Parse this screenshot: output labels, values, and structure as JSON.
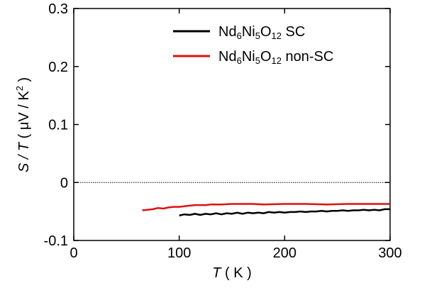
{
  "chart_data": {
    "type": "line",
    "xlabel": {
      "var": "T",
      "rest": " ( K )"
    },
    "ylabel": {
      "var": "S / T",
      "rest": " ( μV / K",
      "sup": "2",
      "end": " )"
    },
    "xlim": [
      0,
      300
    ],
    "ylim": [
      -0.1,
      0.3
    ],
    "x_ticks": [
      "0",
      "100",
      "200",
      "300"
    ],
    "y_ticks": [
      "-0.1",
      "0",
      "0.1",
      "0.2",
      "0.3"
    ],
    "zero_line": true,
    "legend_placement": "top-right",
    "series": [
      {
        "name": "Nd6Ni5O12 SC",
        "label": {
          "a": "Nd",
          "s1": "6",
          "b": "Ni",
          "s2": "5",
          "c": "O",
          "s3": "12",
          "d": " SC"
        },
        "color": "#000000",
        "points": [
          [
            100,
            -0.057
          ],
          [
            105,
            -0.055
          ],
          [
            110,
            -0.056
          ],
          [
            115,
            -0.054
          ],
          [
            120,
            -0.056
          ],
          [
            125,
            -0.054
          ],
          [
            130,
            -0.055
          ],
          [
            135,
            -0.053
          ],
          [
            140,
            -0.055
          ],
          [
            145,
            -0.053
          ],
          [
            150,
            -0.054
          ],
          [
            155,
            -0.052
          ],
          [
            160,
            -0.054
          ],
          [
            165,
            -0.052
          ],
          [
            170,
            -0.053
          ],
          [
            175,
            -0.052
          ],
          [
            180,
            -0.053
          ],
          [
            185,
            -0.051
          ],
          [
            190,
            -0.052
          ],
          [
            195,
            -0.051
          ],
          [
            200,
            -0.052
          ],
          [
            205,
            -0.051
          ],
          [
            210,
            -0.051
          ],
          [
            215,
            -0.05
          ],
          [
            220,
            -0.051
          ],
          [
            225,
            -0.05
          ],
          [
            230,
            -0.05
          ],
          [
            235,
            -0.049
          ],
          [
            240,
            -0.05
          ],
          [
            245,
            -0.049
          ],
          [
            250,
            -0.049
          ],
          [
            255,
            -0.048
          ],
          [
            260,
            -0.049
          ],
          [
            265,
            -0.048
          ],
          [
            270,
            -0.048
          ],
          [
            275,
            -0.047
          ],
          [
            280,
            -0.048
          ],
          [
            285,
            -0.047
          ],
          [
            290,
            -0.048
          ],
          [
            295,
            -0.046
          ],
          [
            300,
            -0.046
          ]
        ]
      },
      {
        "name": "Nd6Ni5O12 non-SC",
        "label": {
          "a": "Nd",
          "s1": "6",
          "b": "Ni",
          "s2": "5",
          "c": "O",
          "s3": "12",
          "d": " non-SC"
        },
        "color": "#e01010",
        "points": [
          [
            65,
            -0.048
          ],
          [
            70,
            -0.047
          ],
          [
            75,
            -0.046
          ],
          [
            80,
            -0.044
          ],
          [
            85,
            -0.045
          ],
          [
            90,
            -0.043
          ],
          [
            95,
            -0.042
          ],
          [
            100,
            -0.042
          ],
          [
            105,
            -0.041
          ],
          [
            110,
            -0.04
          ],
          [
            115,
            -0.039
          ],
          [
            120,
            -0.039
          ],
          [
            125,
            -0.039
          ],
          [
            130,
            -0.038
          ],
          [
            140,
            -0.038
          ],
          [
            150,
            -0.037
          ],
          [
            160,
            -0.037
          ],
          [
            170,
            -0.037
          ],
          [
            180,
            -0.038
          ],
          [
            200,
            -0.037
          ],
          [
            220,
            -0.037
          ],
          [
            240,
            -0.038
          ],
          [
            260,
            -0.037
          ],
          [
            280,
            -0.037
          ],
          [
            300,
            -0.037
          ]
        ]
      }
    ]
  }
}
